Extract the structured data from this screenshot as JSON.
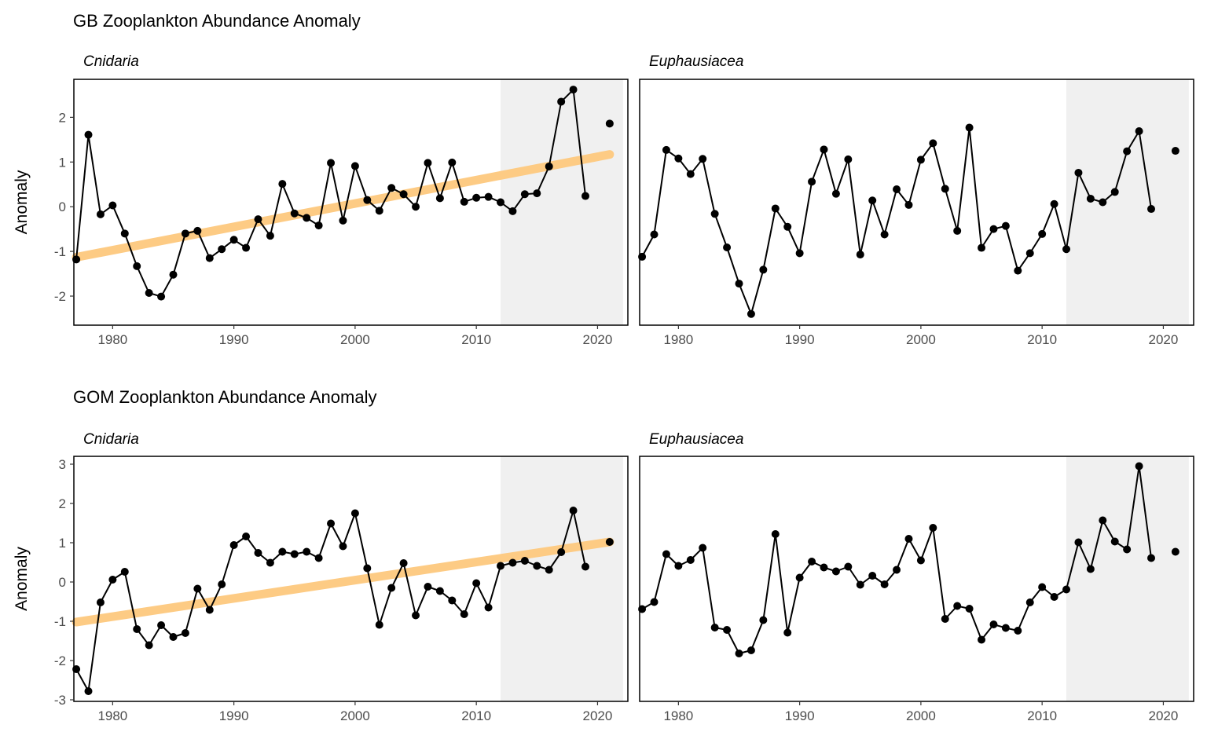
{
  "chart_data": [
    {
      "type": "line",
      "title": "GB Zooplankton Abundance Anomaly",
      "ylabel": "Anomaly",
      "xlabel": "",
      "xlim": [
        1976.8,
        2022.5
      ],
      "ylim": [
        -2.65,
        2.85
      ],
      "xticks": [
        1980,
        1990,
        2000,
        2010,
        2020
      ],
      "yticks": [
        -2,
        -1,
        0,
        1,
        2
      ],
      "grid": false,
      "shaded_region": [
        2012,
        2022.1
      ],
      "panels": [
        {
          "strip": "Cnidaria",
          "trend": {
            "from": [
              1977,
              -1.13
            ],
            "to": [
              2021,
              1.17
            ]
          },
          "series": {
            "x": [
              1977,
              1978,
              1979,
              1980,
              1981,
              1982,
              1983,
              1984,
              1985,
              1986,
              1987,
              1988,
              1989,
              1990,
              1991,
              1992,
              1993,
              1994,
              1995,
              1996,
              1997,
              1998,
              1999,
              2000,
              2001,
              2002,
              2003,
              2004,
              2005,
              2006,
              2007,
              2008,
              2009,
              2010,
              2011,
              2012,
              2013,
              2014,
              2015,
              2016,
              2017,
              2018,
              2019
            ],
            "y": [
              -1.18,
              1.61,
              -0.17,
              0.03,
              -0.6,
              -1.33,
              -1.93,
              -2.01,
              -1.52,
              -0.6,
              -0.54,
              -1.15,
              -0.95,
              -0.74,
              -0.92,
              -0.28,
              -0.65,
              0.51,
              -0.15,
              -0.25,
              -0.42,
              0.98,
              -0.31,
              0.91,
              0.15,
              -0.09,
              0.42,
              0.28,
              0.0,
              0.98,
              0.19,
              0.99,
              0.11,
              0.2,
              0.22,
              0.1,
              -0.1,
              0.28,
              0.3,
              0.9,
              2.35,
              2.62,
              0.24
            ]
          },
          "extra_point": {
            "x": 2021,
            "y": 1.86
          }
        },
        {
          "strip": "Euphausiacea",
          "trend": null,
          "series": {
            "x": [
              1977,
              1978,
              1979,
              1980,
              1981,
              1982,
              1983,
              1984,
              1985,
              1986,
              1987,
              1988,
              1989,
              1990,
              1991,
              1992,
              1993,
              1994,
              1995,
              1996,
              1997,
              1998,
              1999,
              2000,
              2001,
              2002,
              2003,
              2004,
              2005,
              2006,
              2007,
              2008,
              2009,
              2010,
              2011,
              2012,
              2013,
              2014,
              2015,
              2016,
              2017,
              2018,
              2019
            ],
            "y": [
              -1.12,
              -0.62,
              1.27,
              1.08,
              0.73,
              1.07,
              -0.16,
              -0.91,
              -1.72,
              -2.4,
              -1.41,
              -0.04,
              -0.45,
              -1.04,
              0.56,
              1.28,
              0.29,
              1.06,
              -1.07,
              0.14,
              -0.62,
              0.39,
              0.04,
              1.05,
              1.42,
              0.4,
              -0.54,
              1.77,
              -0.92,
              -0.5,
              -0.43,
              -1.43,
              -1.04,
              -0.61,
              0.06,
              -0.95,
              0.76,
              0.18,
              0.1,
              0.33,
              1.24,
              1.69,
              -0.05
            ]
          },
          "extra_point": {
            "x": 2021,
            "y": 1.25
          }
        }
      ]
    },
    {
      "type": "line",
      "title": "GOM Zooplankton Abundance Anomaly",
      "ylabel": "Anomaly",
      "xlabel": "",
      "xlim": [
        1976.8,
        2022.5
      ],
      "ylim": [
        -3.04,
        3.2
      ],
      "xticks": [
        1980,
        1990,
        2000,
        2010,
        2020
      ],
      "yticks": [
        -3,
        -2,
        -1,
        0,
        1,
        2,
        3
      ],
      "grid": false,
      "shaded_region": [
        2012,
        2022.1
      ],
      "panels": [
        {
          "strip": "Cnidaria",
          "trend": {
            "from": [
              1977,
              -1.02
            ],
            "to": [
              2021,
              1.02
            ]
          },
          "series": {
            "x": [
              1977,
              1978,
              1979,
              1980,
              1981,
              1982,
              1983,
              1984,
              1985,
              1986,
              1987,
              1988,
              1989,
              1990,
              1991,
              1992,
              1993,
              1994,
              1995,
              1996,
              1997,
              1998,
              1999,
              2000,
              2001,
              2002,
              2003,
              2004,
              2005,
              2006,
              2007,
              2008,
              2009,
              2010,
              2011,
              2012,
              2013,
              2014,
              2015,
              2016,
              2017,
              2018,
              2019
            ],
            "y": [
              -2.22,
              -2.78,
              -0.52,
              0.06,
              0.26,
              -1.2,
              -1.61,
              -1.1,
              -1.4,
              -1.3,
              -0.17,
              -0.71,
              -0.06,
              0.94,
              1.16,
              0.74,
              0.49,
              0.77,
              0.71,
              0.77,
              0.61,
              1.49,
              0.91,
              1.75,
              0.35,
              -1.09,
              -0.15,
              0.48,
              -0.85,
              -0.12,
              -0.23,
              -0.47,
              -0.82,
              -0.03,
              -0.65,
              0.41,
              0.49,
              0.54,
              0.41,
              0.31,
              0.76,
              1.82,
              0.39
            ]
          },
          "extra_point": {
            "x": 2021,
            "y": 1.02
          }
        },
        {
          "strip": "Euphausiacea",
          "trend": null,
          "series": {
            "x": [
              1977,
              1978,
              1979,
              1980,
              1981,
              1982,
              1983,
              1984,
              1985,
              1986,
              1987,
              1988,
              1989,
              1990,
              1991,
              1992,
              1993,
              1994,
              1995,
              1996,
              1997,
              1998,
              1999,
              2000,
              2001,
              2002,
              2003,
              2004,
              2005,
              2006,
              2007,
              2008,
              2009,
              2010,
              2011,
              2012,
              2013,
              2014,
              2015,
              2016,
              2017,
              2018,
              2019
            ],
            "y": [
              -0.69,
              -0.51,
              0.71,
              0.41,
              0.56,
              0.87,
              -1.16,
              -1.22,
              -1.82,
              -1.74,
              -0.97,
              1.22,
              -1.29,
              0.11,
              0.52,
              0.37,
              0.27,
              0.39,
              -0.07,
              0.16,
              -0.06,
              0.31,
              1.1,
              0.55,
              1.38,
              -0.94,
              -0.61,
              -0.68,
              -1.47,
              -1.08,
              -1.17,
              -1.24,
              -0.52,
              -0.13,
              -0.38,
              -0.19,
              1.01,
              0.33,
              1.57,
              1.03,
              0.83,
              2.95,
              0.61
            ]
          },
          "extra_point": {
            "x": 2021,
            "y": 0.77
          }
        }
      ]
    }
  ],
  "colors": {
    "trend": "#FDCB84",
    "shade": "#F0F0F0",
    "line": "#000000",
    "panel_border": "#000000"
  }
}
